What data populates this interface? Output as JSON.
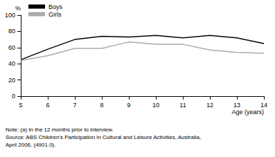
{
  "chart_data": {
    "type": "line",
    "categories": [
      "5",
      "6",
      "7",
      "8",
      "9",
      "10",
      "11",
      "12",
      "13",
      "14"
    ],
    "series": [
      {
        "name": "Boys",
        "color": "#000000",
        "values": [
          45,
          58,
          70,
          74,
          73,
          75,
          72,
          75,
          72,
          65
        ]
      },
      {
        "name": "Girls",
        "color": "#aaaaaa",
        "values": [
          44,
          50,
          59,
          59,
          67,
          64,
          64,
          57,
          54,
          53
        ]
      }
    ],
    "y_label": "%",
    "x_label": "Age (years)",
    "ylim": [
      0,
      100
    ],
    "yticks": [
      0,
      20,
      40,
      60,
      80,
      100
    ],
    "grid": false,
    "legend": "top-left",
    "notes": [
      "Note: (a) In the 12 months prior to interview.",
      "Source: ABS Children's Participation in Cultural and Leisure Activities, Australia,",
      "April 2006, (4901.0)."
    ]
  }
}
